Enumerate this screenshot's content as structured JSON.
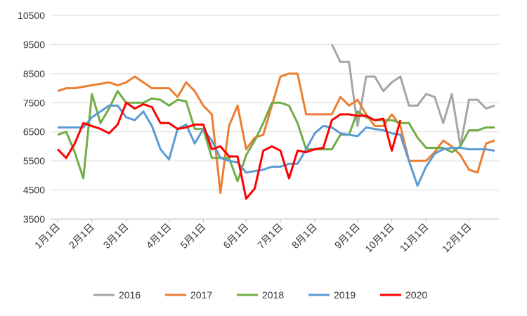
{
  "chart_data": {
    "type": "line",
    "categories": [
      "1月1日",
      null,
      null,
      null,
      "2月1日",
      null,
      null,
      null,
      "3月1日",
      null,
      null,
      null,
      null,
      "4月1日",
      null,
      null,
      null,
      "5月1日",
      null,
      null,
      null,
      null,
      "6月1日",
      null,
      null,
      null,
      "7月1日",
      null,
      null,
      null,
      "8月1日",
      null,
      null,
      null,
      null,
      "9月1日",
      null,
      null,
      null,
      "10月1日",
      null,
      null,
      null,
      "11月1日",
      null,
      null,
      null,
      null,
      "12月1日",
      null,
      null,
      null
    ],
    "series": [
      {
        "name": "2016",
        "color": "#a5a5a5",
        "values": [
          null,
          null,
          null,
          null,
          null,
          null,
          null,
          null,
          null,
          null,
          null,
          null,
          null,
          null,
          null,
          null,
          null,
          null,
          null,
          null,
          null,
          null,
          null,
          null,
          null,
          null,
          null,
          null,
          null,
          null,
          null,
          null,
          9500,
          8900,
          8900,
          6700,
          8400,
          8400,
          7900,
          8200,
          8400,
          7400,
          7400,
          7800,
          7700,
          6800,
          7800,
          6000,
          7600,
          7600,
          7300,
          7400
        ]
      },
      {
        "name": "2017",
        "color": "#ed7d31",
        "values": [
          7900,
          8000,
          8000,
          8050,
          8100,
          8150,
          8200,
          8100,
          8200,
          8400,
          8200,
          8000,
          8000,
          8000,
          7700,
          8200,
          7900,
          7400,
          7100,
          4400,
          6700,
          7400,
          5900,
          6300,
          6400,
          7400,
          8400,
          8500,
          8500,
          7100,
          7100,
          7100,
          7100,
          7700,
          7400,
          7600,
          7100,
          6700,
          6700,
          7100,
          6700,
          5500,
          5500,
          5500,
          5800,
          6200,
          6000,
          5700,
          5200,
          5100,
          6100,
          6200
        ]
      },
      {
        "name": "2018",
        "color": "#70ad47",
        "values": [
          6400,
          6500,
          5800,
          4900,
          7800,
          6800,
          7300,
          7900,
          7500,
          7500,
          7500,
          7650,
          7600,
          7400,
          7600,
          7550,
          6600,
          6600,
          5600,
          5600,
          5600,
          4800,
          5700,
          6200,
          6800,
          7500,
          7500,
          7400,
          6800,
          5900,
          5900,
          5900,
          5900,
          6400,
          6400,
          7200,
          7000,
          6900,
          6900,
          6900,
          6800,
          6800,
          6300,
          5950,
          5950,
          5950,
          5800,
          6000,
          6550,
          6550,
          6650,
          6650
        ]
      },
      {
        "name": "2019",
        "color": "#5b9bd5",
        "values": [
          6650,
          6650,
          6650,
          6650,
          7000,
          7200,
          7400,
          7400,
          7000,
          6900,
          7200,
          6700,
          5900,
          5550,
          6600,
          6750,
          6100,
          6600,
          6200,
          5600,
          5500,
          5450,
          5100,
          5150,
          5200,
          5300,
          5300,
          5400,
          5400,
          5900,
          6450,
          6700,
          6650,
          6450,
          6400,
          6350,
          6650,
          6600,
          6550,
          6450,
          6400,
          5500,
          4650,
          5300,
          5750,
          5900,
          5950,
          5950,
          5900,
          5900,
          5900,
          5850
        ]
      },
      {
        "name": "2020",
        "color": "#ff0000",
        "values": [
          5900,
          5600,
          6100,
          6800,
          6700,
          6600,
          6450,
          6750,
          7500,
          7300,
          7450,
          7350,
          6800,
          6800,
          6600,
          6650,
          6750,
          6750,
          5900,
          6000,
          5650,
          5650,
          4200,
          4550,
          5850,
          6000,
          5850,
          4900,
          5850,
          5800,
          5900,
          5950,
          6900,
          7100,
          7100,
          7050,
          7050,
          6900,
          6950,
          5850,
          6900,
          null,
          null,
          null,
          null,
          null,
          null,
          null,
          null,
          null,
          null,
          null
        ]
      }
    ],
    "ylim": [
      3500,
      10500
    ],
    "yticks": [
      3500,
      4500,
      5500,
      6500,
      7500,
      8500,
      9500,
      10500
    ],
    "grid": true,
    "legend": "bottom"
  }
}
